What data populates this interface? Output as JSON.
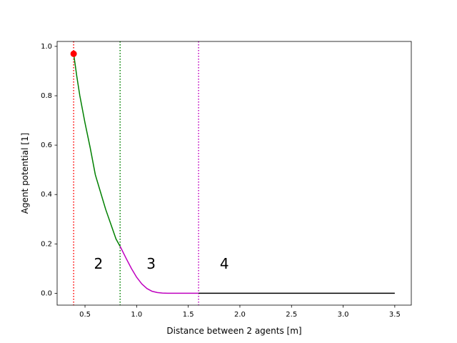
{
  "chart_data": {
    "type": "line",
    "title": "",
    "xlabel": "Distance between 2 agents [m]",
    "ylabel": "Agent potential [1]",
    "xlim": [
      0.23,
      3.66
    ],
    "ylim": [
      -0.048,
      1.02
    ],
    "grid": false,
    "x_ticks": [
      0.5,
      1.0,
      1.5,
      2.0,
      2.5,
      3.0,
      3.5
    ],
    "x_tick_labels": [
      "0.5",
      "1.0",
      "1.5",
      "2.0",
      "2.5",
      "3.0",
      "3.5"
    ],
    "y_ticks": [
      0.0,
      0.2,
      0.4,
      0.6,
      0.8,
      1.0
    ],
    "y_tick_labels": [
      "0.0",
      "0.2",
      "0.4",
      "0.6",
      "0.8",
      "1.0"
    ],
    "series": [
      {
        "color": "#008000",
        "x": [
          0.39,
          0.42,
          0.45,
          0.5,
          0.55,
          0.6,
          0.65,
          0.7,
          0.75,
          0.8,
          0.84
        ],
        "y": [
          0.97,
          0.88,
          0.8,
          0.69,
          0.59,
          0.48,
          0.41,
          0.34,
          0.28,
          0.22,
          0.19
        ]
      },
      {
        "color": "#bf00bf",
        "x": [
          0.84,
          0.9,
          0.95,
          1.0,
          1.05,
          1.1,
          1.15,
          1.2,
          1.25,
          1.3,
          1.4,
          1.5,
          1.6
        ],
        "y": [
          0.19,
          0.14,
          0.1,
          0.065,
          0.038,
          0.019,
          0.008,
          0.003,
          0.001,
          0.0,
          0.0,
          0.0,
          0.0
        ]
      },
      {
        "color": "#000000",
        "x": [
          1.6,
          2.0,
          2.5,
          3.0,
          3.5
        ],
        "y": [
          0.0,
          0.0,
          0.0,
          0.0,
          0.0
        ]
      }
    ],
    "marker": {
      "x": 0.39,
      "y": 0.97,
      "color": "#ff0000"
    },
    "vlines": [
      {
        "x": 0.39,
        "color": "#ff0000"
      },
      {
        "x": 0.84,
        "color": "#008000"
      },
      {
        "x": 1.6,
        "color": "#bf00bf"
      }
    ],
    "annotations": [
      {
        "text": "2",
        "x": 0.63,
        "y": 0.115
      },
      {
        "text": "3",
        "x": 1.14,
        "y": 0.115
      },
      {
        "text": "4",
        "x": 1.85,
        "y": 0.115
      }
    ]
  }
}
